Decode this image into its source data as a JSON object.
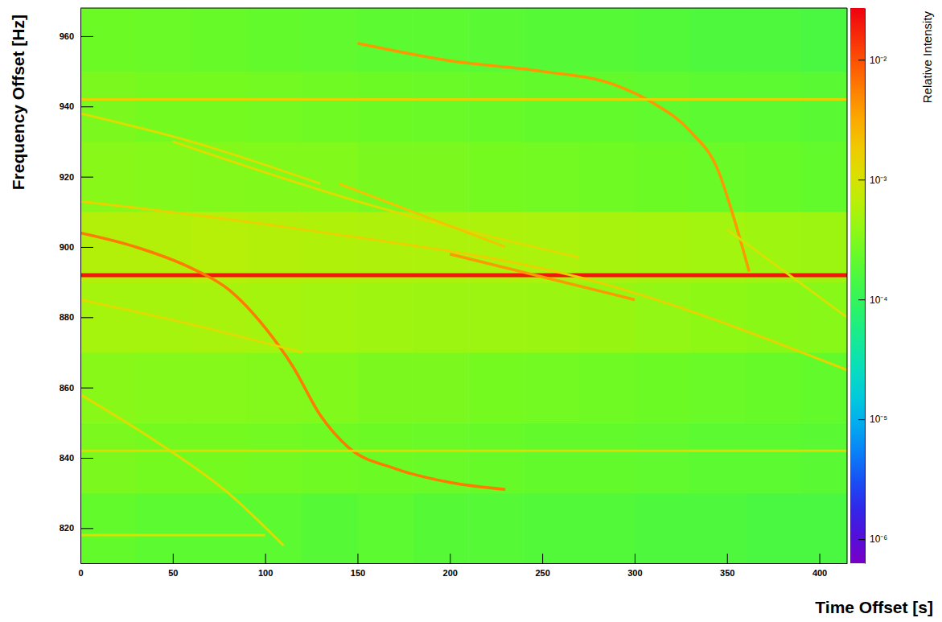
{
  "chart_data": {
    "type": "heatmap",
    "x_label": "Time Offset [s]",
    "y_label": "Frequency Offset [Hz]",
    "xlim": [
      0,
      415
    ],
    "xticks": [
      0,
      50,
      100,
      150,
      200,
      250,
      300,
      350,
      400
    ],
    "ylim": [
      810,
      968
    ],
    "yticks": [
      820,
      840,
      860,
      880,
      900,
      920,
      940,
      960
    ],
    "grid": false,
    "x_bins": [
      0,
      30,
      60,
      90,
      120,
      150,
      180,
      210,
      240,
      270,
      300,
      330,
      360,
      390,
      415
    ],
    "y_bins": [
      810,
      830,
      850,
      870,
      890,
      910,
      930,
      950,
      968
    ],
    "cells": [
      [
        0.00022,
        0.0002,
        0.0002,
        0.0002,
        0.00018,
        0.0002,
        0.00018,
        0.00018,
        0.00017,
        0.00017,
        0.00016,
        0.00016,
        0.00015,
        0.00015
      ],
      [
        0.0003,
        0.00028,
        0.00028,
        0.00027,
        0.00026,
        0.00025,
        0.00024,
        0.00023,
        0.00022,
        0.00022,
        0.00021,
        0.0002,
        0.0002,
        0.00019
      ],
      [
        0.00035,
        0.00034,
        0.00034,
        0.00033,
        0.00032,
        0.0003,
        0.0003,
        0.00028,
        0.00027,
        0.00026,
        0.00025,
        0.00024,
        0.00023,
        0.00022
      ],
      [
        0.0005,
        0.0005,
        0.00052,
        0.0005,
        0.00048,
        0.00046,
        0.00045,
        0.00045,
        0.00044,
        0.00042,
        0.0004,
        0.00038,
        0.00036,
        0.00035
      ],
      [
        0.0006,
        0.0006,
        0.00062,
        0.0006,
        0.00058,
        0.00056,
        0.00055,
        0.00055,
        0.00054,
        0.00052,
        0.0005,
        0.00048,
        0.00046,
        0.00045
      ],
      [
        0.00035,
        0.00034,
        0.00033,
        0.00032,
        0.00032,
        0.0003,
        0.0003,
        0.00028,
        0.00027,
        0.00026,
        0.00025,
        0.00024,
        0.00023,
        0.00022
      ],
      [
        0.0003,
        0.00028,
        0.00028,
        0.00027,
        0.00026,
        0.00025,
        0.00024,
        0.00023,
        0.00022,
        0.00022,
        0.00021,
        0.0002,
        0.0002,
        0.00019
      ],
      [
        0.00025,
        0.00024,
        0.00023,
        0.00022,
        0.00021,
        0.0002,
        0.0002,
        0.00019,
        0.00018,
        0.00018,
        0.00017,
        0.00016,
        0.00016,
        0.00015
      ]
    ],
    "series": [
      {
        "x": [
          0,
          415
        ],
        "values": [
          892,
          892
        ],
        "intensity": 0.02
      },
      {
        "x": [
          0,
          30,
          60,
          80,
          100,
          115,
          130,
          145,
          170,
          200,
          230
        ],
        "values": [
          904,
          900,
          894,
          888,
          877,
          866,
          852,
          843,
          837,
          833,
          831
        ],
        "intensity": 0.006
      },
      {
        "x": [
          150,
          200,
          250,
          290,
          310,
          330,
          345,
          355,
          362
        ],
        "values": [
          958,
          953,
          950,
          946,
          941,
          933,
          922,
          906,
          893
        ],
        "intensity": 0.004
      },
      {
        "x": [
          0,
          415
        ],
        "values": [
          942,
          942
        ],
        "intensity": 0.0015
      },
      {
        "x": [
          0,
          415
        ],
        "values": [
          842,
          842
        ],
        "intensity": 0.0012
      },
      {
        "x": [
          0,
          60,
          130
        ],
        "values": [
          938,
          930,
          918
        ],
        "intensity": 0.0012
      },
      {
        "x": [
          0,
          120,
          280,
          415
        ],
        "values": [
          913,
          905,
          890,
          865
        ],
        "intensity": 0.0015
      },
      {
        "x": [
          50,
          150,
          270
        ],
        "values": [
          930,
          913,
          897
        ],
        "intensity": 0.0012
      },
      {
        "x": [
          140,
          230
        ],
        "values": [
          918,
          900
        ],
        "intensity": 0.002
      },
      {
        "x": [
          0,
          60,
          120
        ],
        "values": [
          885,
          878,
          870
        ],
        "intensity": 0.0012
      },
      {
        "x": [
          0,
          40,
          80,
          110
        ],
        "values": [
          858,
          845,
          830,
          815
        ],
        "intensity": 0.0012
      },
      {
        "x": [
          350,
          415
        ],
        "values": [
          905,
          880
        ],
        "intensity": 0.001
      },
      {
        "x": [
          200,
          300
        ],
        "values": [
          898,
          885
        ],
        "intensity": 0.004
      },
      {
        "x": [
          0,
          100
        ],
        "values": [
          818,
          818
        ],
        "intensity": 0.001
      }
    ],
    "colorbar": {
      "label": "Relative Intensity",
      "log": true,
      "range": [
        6.3e-07,
        0.027
      ],
      "ticks": [
        {
          "value": 1e-06,
          "label": "10⁻⁶"
        },
        {
          "value": 1e-05,
          "label": "10⁻⁵"
        },
        {
          "value": 0.0001,
          "label": "10⁻⁴"
        },
        {
          "value": 0.001,
          "label": "10⁻³"
        },
        {
          "value": 0.01,
          "label": "10⁻²"
        }
      ]
    }
  }
}
